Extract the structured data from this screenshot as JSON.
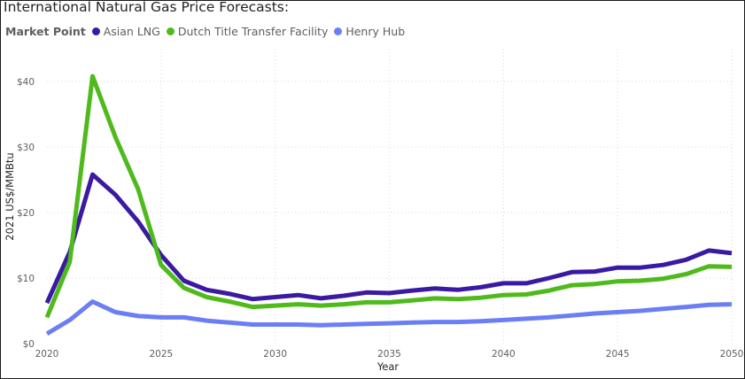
{
  "chart_data": {
    "type": "line",
    "title": "International Natural Gas Price Forecasts:",
    "legend_title": "Market Point",
    "legend_placement": "top-left",
    "xlabel": "Year",
    "ylabel": "2021 US$/MMBtu",
    "xlim": [
      2020,
      2050
    ],
    "ylim": [
      0,
      45
    ],
    "x_ticks": [
      2020,
      2025,
      2030,
      2035,
      2040,
      2045,
      2050
    ],
    "x_tick_labels": [
      "2020",
      "2025",
      "2030",
      "2035",
      "2040",
      "2045",
      "2050"
    ],
    "y_ticks": [
      0,
      10,
      20,
      30,
      40
    ],
    "y_tick_labels": [
      "$0",
      "$10",
      "$20",
      "$30",
      "$40"
    ],
    "grid": true,
    "x": [
      2020,
      2021,
      2022,
      2023,
      2024,
      2025,
      2026,
      2027,
      2028,
      2029,
      2030,
      2031,
      2032,
      2033,
      2034,
      2035,
      2036,
      2037,
      2038,
      2039,
      2040,
      2041,
      2042,
      2043,
      2044,
      2045,
      2046,
      2047,
      2048,
      2049,
      2050
    ],
    "series": [
      {
        "name": "Asian LNG",
        "color": "#3b1aa3",
        "values": [
          6.2,
          14.0,
          25.8,
          22.7,
          18.6,
          13.5,
          9.6,
          8.2,
          7.6,
          6.8,
          7.1,
          7.4,
          6.9,
          7.3,
          7.8,
          7.7,
          8.1,
          8.4,
          8.2,
          8.6,
          9.2,
          9.2,
          10.0,
          10.9,
          11.0,
          11.6,
          11.6,
          12.0,
          12.8,
          14.2,
          13.8
        ]
      },
      {
        "name": "Dutch Title Transfer Facility",
        "color": "#4fba1c",
        "values": [
          4.0,
          12.5,
          40.8,
          31.5,
          23.5,
          12.0,
          8.5,
          7.1,
          6.4,
          5.6,
          5.8,
          6.0,
          5.8,
          6.0,
          6.3,
          6.3,
          6.6,
          6.9,
          6.8,
          7.0,
          7.4,
          7.5,
          8.1,
          8.9,
          9.1,
          9.5,
          9.6,
          9.9,
          10.6,
          11.8,
          11.7
        ]
      },
      {
        "name": "Henry Hub",
        "color": "#6b7ef5",
        "values": [
          1.5,
          3.6,
          6.4,
          4.8,
          4.2,
          4.0,
          4.0,
          3.5,
          3.2,
          2.9,
          2.9,
          2.9,
          2.8,
          2.9,
          3.0,
          3.1,
          3.2,
          3.3,
          3.3,
          3.4,
          3.6,
          3.8,
          4.0,
          4.3,
          4.6,
          4.8,
          5.0,
          5.3,
          5.6,
          5.9,
          6.0
        ]
      }
    ]
  }
}
